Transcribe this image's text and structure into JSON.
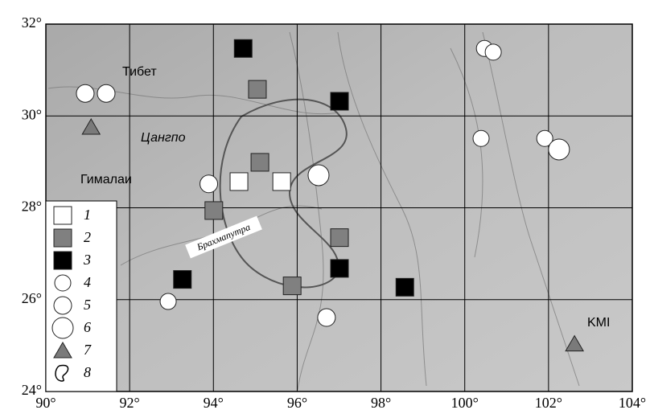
{
  "map": {
    "x_ticks": [
      {
        "value": 90,
        "label": "90°"
      },
      {
        "value": 92,
        "label": "92°"
      },
      {
        "value": 94,
        "label": "94°"
      },
      {
        "value": 96,
        "label": "96°"
      },
      {
        "value": 98,
        "label": "98°"
      },
      {
        "value": 100,
        "label": "100°"
      },
      {
        "value": 102,
        "label": "102°"
      },
      {
        "value": 104,
        "label": "104°"
      }
    ],
    "y_ticks": [
      {
        "value": 24,
        "label": "24°"
      },
      {
        "value": 26,
        "label": "26°"
      },
      {
        "value": 28,
        "label": "28°"
      },
      {
        "value": 30,
        "label": "30°"
      },
      {
        "value": 32,
        "label": "32°"
      }
    ],
    "place_labels": [
      "Тибет",
      "Цангпо",
      "Гималаи",
      "Брахмапутра",
      "KMI"
    ],
    "legend": [
      {
        "label": "1",
        "points": [
          [
            94.61,
            28.57
          ],
          [
            95.63,
            28.57
          ]
        ]
      },
      {
        "label": "2",
        "points": [
          [
            95.05,
            30.58
          ],
          [
            95.11,
            28.99
          ],
          [
            94.01,
            27.94
          ],
          [
            97.01,
            27.35
          ],
          [
            95.88,
            26.3
          ]
        ]
      },
      {
        "label": "3",
        "points": [
          [
            94.71,
            31.47
          ],
          [
            97.01,
            30.32
          ],
          [
            97.01,
            26.68
          ],
          [
            93.26,
            26.44
          ],
          [
            98.57,
            26.27
          ]
        ]
      },
      {
        "label": "4",
        "points": [
          [
            100.47,
            31.47
          ],
          [
            100.68,
            31.39
          ],
          [
            100.39,
            29.51
          ],
          [
            101.91,
            29.51
          ],
          [
            92.92,
            25.96
          ]
        ]
      },
      {
        "label": "5",
        "points": [
          [
            90.94,
            30.49
          ],
          [
            91.44,
            30.49
          ],
          [
            93.89,
            28.52
          ],
          [
            96.7,
            25.61
          ]
        ]
      },
      {
        "label": "6",
        "points": [
          [
            96.51,
            28.71
          ],
          [
            102.25,
            29.27
          ]
        ]
      },
      {
        "label": "7",
        "points": [
          [
            91.08,
            29.76
          ],
          [
            102.62,
            25.04
          ]
        ]
      },
      {
        "label": "8",
        "points": []
      }
    ]
  }
}
